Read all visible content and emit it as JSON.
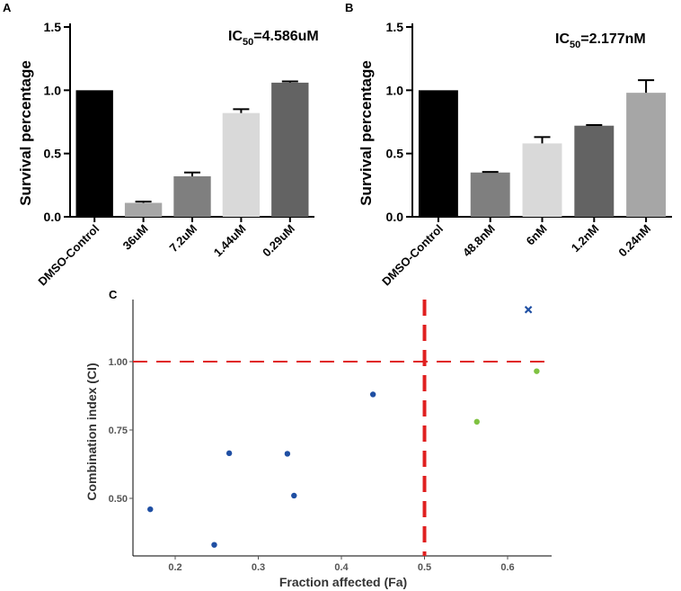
{
  "chart_data": [
    {
      "panel": "A",
      "type": "bar",
      "title": "IC50=4.586uM",
      "title_main": "IC",
      "title_sub": "50",
      "title_rest": "=4.586uM",
      "xlabel": "",
      "ylabel": "Survival percentage",
      "ylim": [
        0,
        1.5
      ],
      "yticks": [
        0.0,
        0.5,
        1.0,
        1.5
      ],
      "ytick_labels": [
        "0.0",
        "0.5",
        "1.0",
        "1.5"
      ],
      "categories": [
        "DMSO-Control",
        "36uM",
        "7.2uM",
        "1.44uM",
        "0.29uM"
      ],
      "values": [
        1.0,
        0.11,
        0.32,
        0.82,
        1.06
      ],
      "errors": [
        0.0,
        0.01,
        0.03,
        0.03,
        0.01
      ],
      "colors": [
        "#000000",
        "#a6a6a6",
        "#7f7f7f",
        "#d9d9d9",
        "#636363"
      ]
    },
    {
      "panel": "B",
      "type": "bar",
      "title": "IC50=2.177nM",
      "title_main": "IC",
      "title_sub": "50",
      "title_rest": "=2.177nM",
      "xlabel": "",
      "ylabel": "Survival percentage",
      "ylim": [
        0,
        1.5
      ],
      "yticks": [
        0.0,
        0.5,
        1.0,
        1.5
      ],
      "ytick_labels": [
        "0.0",
        "0.5",
        "1.0",
        "1.5"
      ],
      "categories": [
        "DMSO-Control",
        "48.8nM",
        "6nM",
        "1.2nM",
        "0.24nM"
      ],
      "values": [
        1.0,
        0.35,
        0.58,
        0.72,
        0.98
      ],
      "errors": [
        0.0,
        0.005,
        0.05,
        0.005,
        0.1
      ],
      "colors": [
        "#000000",
        "#7f7f7f",
        "#d9d9d9",
        "#636363",
        "#a6a6a6"
      ]
    },
    {
      "panel": "C",
      "type": "scatter",
      "title": "",
      "xlabel": "Fraction affected (Fa)",
      "ylabel": "Combination index (CI)",
      "xlim": [
        0.15,
        0.66
      ],
      "ylim": [
        0.3,
        1.25
      ],
      "xticks": [
        0.2,
        0.3,
        0.4,
        0.5,
        0.6
      ],
      "xtick_labels": [
        "0.2",
        "0.3",
        "0.4",
        "0.5",
        "0.6"
      ],
      "yticks": [
        0.5,
        0.75,
        1.0
      ],
      "ytick_labels": [
        "0.50",
        "0.75",
        "1.00"
      ],
      "reference_lines": {
        "x": 0.5,
        "y": 1.0,
        "color": "#e02020"
      },
      "series": [
        {
          "name": "blue",
          "marker": "dot",
          "color": "#1f4fa3",
          "points": [
            [
              0.17,
              0.46
            ],
            [
              0.247,
              0.33
            ],
            [
              0.265,
              0.665
            ],
            [
              0.335,
              0.663
            ],
            [
              0.343,
              0.51
            ],
            [
              0.438,
              0.88
            ]
          ]
        },
        {
          "name": "green",
          "marker": "dot",
          "color": "#7fc241",
          "points": [
            [
              0.563,
              0.78
            ],
            [
              0.635,
              0.965
            ]
          ]
        },
        {
          "name": "blue-x",
          "marker": "x",
          "color": "#1f4fa3",
          "points": [
            [
              0.625,
              1.19
            ]
          ]
        }
      ]
    }
  ]
}
